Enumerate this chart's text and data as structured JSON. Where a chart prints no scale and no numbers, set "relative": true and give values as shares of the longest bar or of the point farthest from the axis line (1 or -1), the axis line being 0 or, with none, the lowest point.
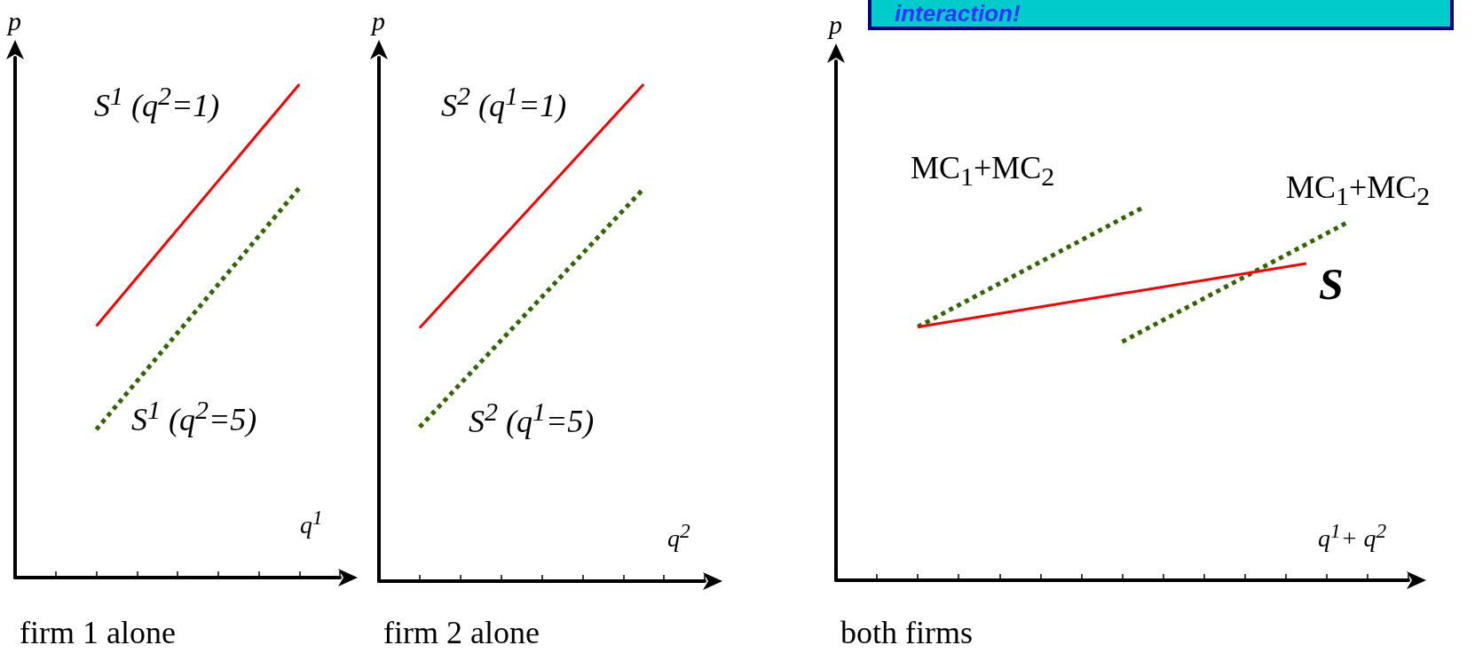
{
  "chart_data": [
    {
      "type": "line",
      "title": "firm 1 alone",
      "xlabel": "q$^{1}$",
      "ylabel": "p",
      "relative": true,
      "categories": [
        null,
        null,
        null,
        null,
        null,
        null,
        null,
        null,
        null,
        null,
        null,
        null,
        null,
        null,
        null,
        null,
        null
      ],
      "grid": false,
      "marker": "none",
      "series": [
        {
          "color": "#ff0000",
          "line_style": "solid",
          "values": [
            null,
            null,
            null,
            null,
            0.51,
            null,
            null,
            null,
            null,
            null,
            null,
            null,
            null,
            null,
            1,
            null,
            null
          ]
        },
        {
          "color": "#336600",
          "line_style": "dotted",
          "values": [
            null,
            null,
            null,
            null,
            0.3,
            null,
            null,
            null,
            null,
            null,
            null,
            null,
            null,
            null,
            0.79,
            null,
            null
          ]
        }
      ],
      "annotations": [
        "S$^{1}$ (q$^{2}$=1)",
        "S$^{1}$ (q$^{2}$=5)"
      ]
    },
    {
      "type": "line",
      "title": "firm 2 alone",
      "xlabel": "q$^{2}$",
      "ylabel": "p",
      "relative": true,
      "categories": [
        null,
        null,
        null,
        null,
        null,
        null,
        null,
        null,
        null,
        null,
        null,
        null,
        null,
        null,
        null,
        null,
        null
      ],
      "grid": false,
      "marker": "none",
      "series": [
        {
          "color": "#ff0000",
          "line_style": "solid",
          "values": [
            null,
            null,
            0.51,
            null,
            null,
            null,
            null,
            null,
            null,
            null,
            null,
            null,
            null,
            1,
            null,
            null,
            null
          ]
        },
        {
          "color": "#336600",
          "line_style": "dotted",
          "values": [
            null,
            null,
            0.31,
            null,
            null,
            null,
            null,
            null,
            null,
            null,
            null,
            null,
            null,
            0.79,
            null,
            null,
            null
          ]
        }
      ],
      "annotations": [
        "S$^{2}$ (q$^{1}$=1)",
        "S$^{2}$ (q$^{1}$=5)"
      ]
    },
    {
      "type": "line",
      "title": "both firms",
      "xlabel": "q$^{1}$+ q$^{2}$",
      "ylabel": "p",
      "relative": true,
      "categories": [
        null,
        null,
        null,
        null,
        null,
        null,
        null,
        null,
        null,
        null,
        null,
        null,
        null,
        null,
        null,
        null,
        null,
        null,
        null,
        null,
        null,
        null,
        null,
        null,
        null,
        null,
        null,
        null,
        null
      ],
      "grid": false,
      "marker": "none",
      "series": [
        {
          "color": "#336600",
          "line_style": "dotted",
          "values": [
            null,
            null,
            null,
            null,
            0.68,
            null,
            null,
            null,
            null,
            null,
            null,
            null,
            null,
            null,
            null,
            1,
            null,
            null,
            null,
            null,
            null,
            null,
            null,
            null,
            null,
            null,
            null,
            null,
            null
          ]
        },
        {
          "color": "#336600",
          "line_style": "dotted",
          "values": [
            null,
            null,
            null,
            null,
            null,
            null,
            null,
            null,
            null,
            null,
            null,
            null,
            null,
            null,
            0.64,
            null,
            null,
            null,
            null,
            null,
            null,
            null,
            null,
            null,
            null,
            0.96,
            null,
            null,
            null
          ]
        },
        {
          "color": "#ff0000",
          "line_style": "solid",
          "values": [
            null,
            null,
            null,
            null,
            0.68,
            null,
            null,
            null,
            null,
            null,
            null,
            null,
            null,
            null,
            null,
            null,
            null,
            null,
            null,
            null,
            null,
            null,
            null,
            0.85,
            null,
            null,
            null,
            null,
            null
          ]
        }
      ],
      "annotations": [
        "interaction!",
        "MC$_{1}$+MC$_{2}$",
        "MC$_{1}$+MC$_{2}$",
        "S"
      ]
    }
  ]
}
